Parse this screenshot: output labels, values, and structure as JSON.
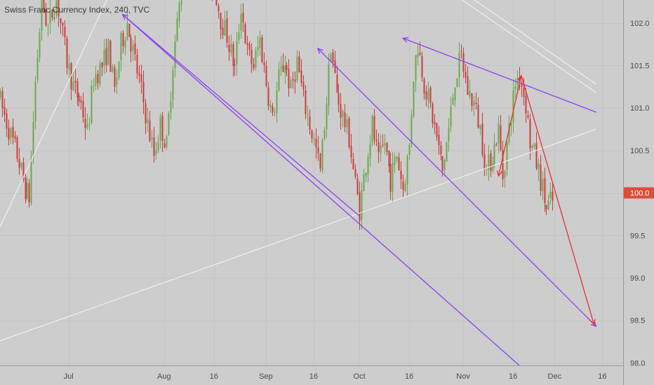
{
  "chart_data": {
    "type": "candlestick",
    "title": "Swiss Franc Currency Index, 240, TVC",
    "y_ticks": [
      98.0,
      98.5,
      99.0,
      99.5,
      100.0,
      100.5,
      101.0,
      101.5,
      102.0
    ],
    "y_tick_labels": [
      "98.0",
      "98.5",
      "99.0",
      "99.5",
      "100.0",
      "100.5",
      "101.0",
      "101.5",
      "102.0"
    ],
    "ylim": [
      97.97,
      102.27
    ],
    "current_price": 100.0,
    "current_price_label": "100.0",
    "x_tick_labels": [
      {
        "label": "Jul",
        "bar": 33
      },
      {
        "label": "Aug",
        "bar": 79
      },
      {
        "label": "16",
        "bar": 103
      },
      {
        "label": "Sep",
        "bar": 128
      },
      {
        "label": "16",
        "bar": 151
      },
      {
        "label": "Oct",
        "bar": 173
      },
      {
        "label": "16",
        "bar": 197
      },
      {
        "label": "Nov",
        "bar": 223
      },
      {
        "label": "16",
        "bar": 247
      },
      {
        "label": "Dec",
        "bar": 267
      },
      {
        "label": "16",
        "bar": 290
      }
    ],
    "bar_count": 300,
    "price_path": [
      [
        0,
        101.15
      ],
      [
        5,
        100.75
      ],
      [
        9,
        100.45
      ],
      [
        13,
        100.05
      ],
      [
        15,
        99.95
      ],
      [
        18,
        101.3
      ],
      [
        21,
        102.25
      ],
      [
        24,
        101.95
      ],
      [
        28,
        102.3
      ],
      [
        33,
        101.55
      ],
      [
        36,
        101.25
      ],
      [
        40,
        101.05
      ],
      [
        43,
        100.7
      ],
      [
        46,
        101.35
      ],
      [
        50,
        101.5
      ],
      [
        53,
        101.7
      ],
      [
        56,
        101.2
      ],
      [
        59,
        101.75
      ],
      [
        62,
        102.0
      ],
      [
        66,
        101.55
      ],
      [
        69,
        101.2
      ],
      [
        72,
        100.8
      ],
      [
        75,
        100.45
      ],
      [
        78,
        100.8
      ],
      [
        81,
        100.55
      ],
      [
        84,
        101.55
      ],
      [
        87,
        102.2
      ],
      [
        90,
        102.7
      ],
      [
        95,
        102.65
      ],
      [
        100,
        102.45
      ],
      [
        104,
        102.45
      ],
      [
        107,
        102.05
      ],
      [
        110,
        101.85
      ],
      [
        114,
        101.45
      ],
      [
        117,
        102.2
      ],
      [
        120,
        101.65
      ],
      [
        123,
        101.5
      ],
      [
        126,
        101.8
      ],
      [
        129,
        101.3
      ],
      [
        132,
        100.85
      ],
      [
        135,
        101.35
      ],
      [
        138,
        101.55
      ],
      [
        141,
        101.2
      ],
      [
        144,
        101.55
      ],
      [
        147,
        101.1
      ],
      [
        150,
        100.8
      ],
      [
        153,
        100.5
      ],
      [
        155,
        100.25
      ],
      [
        158,
        101.1
      ],
      [
        160,
        101.75
      ],
      [
        163,
        101.15
      ],
      [
        166,
        100.9
      ],
      [
        169,
        100.65
      ],
      [
        172,
        100.1
      ],
      [
        174,
        99.8
      ],
      [
        177,
        100.35
      ],
      [
        180,
        100.8
      ],
      [
        183,
        100.35
      ],
      [
        186,
        100.6
      ],
      [
        189,
        100.15
      ],
      [
        192,
        100.45
      ],
      [
        195,
        100.05
      ],
      [
        198,
        100.55
      ],
      [
        200,
        101.4
      ],
      [
        202,
        101.75
      ],
      [
        205,
        101.3
      ],
      [
        208,
        101.0
      ],
      [
        211,
        100.65
      ],
      [
        214,
        100.25
      ],
      [
        217,
        100.75
      ],
      [
        220,
        101.35
      ],
      [
        223,
        101.6
      ],
      [
        226,
        101.2
      ],
      [
        229,
        101.05
      ],
      [
        232,
        100.75
      ],
      [
        235,
        100.25
      ],
      [
        238,
        100.45
      ],
      [
        241,
        100.75
      ],
      [
        243,
        100.2
      ],
      [
        246,
        100.75
      ],
      [
        249,
        101.3
      ],
      [
        251,
        101.4
      ],
      [
        254,
        101.05
      ],
      [
        256,
        100.6
      ],
      [
        258,
        100.45
      ],
      [
        260,
        100.25
      ],
      [
        262,
        100.05
      ],
      [
        264,
        99.8
      ],
      [
        266,
        99.9
      ]
    ],
    "grid": true,
    "legend": "none"
  },
  "colors": {
    "background": "#cdcdcd",
    "up_candle": "#6aa84f",
    "down_candle": "#cc3b3b",
    "trendline_purple": "#8c3ff2",
    "trendline_red": "#e83030",
    "trendline_white": "#f5f5f5",
    "price_label_bg": "#e04b3a",
    "axis_text": "#4a4a4a"
  },
  "drawings": [
    {
      "kind": "line",
      "color": "white",
      "from": {
        "bar": -1,
        "price": 99.55
      },
      "to": {
        "bar": 52,
        "price": 102.3
      }
    },
    {
      "kind": "line",
      "color": "white",
      "from": {
        "bar": -1,
        "price": 98.25
      },
      "to": {
        "bar": 287,
        "price": 100.75
      }
    },
    {
      "kind": "line",
      "color": "white",
      "from": {
        "bar": 206,
        "price": 102.65
      },
      "to": {
        "bar": 287,
        "price": 101.28
      }
    },
    {
      "kind": "line",
      "color": "white",
      "from": {
        "bar": 206,
        "price": 102.55
      },
      "to": {
        "bar": 287,
        "price": 101.18
      }
    },
    {
      "kind": "arrow",
      "color": "purple",
      "from": {
        "bar": 173,
        "price": 99.73
      },
      "to": {
        "bar": 59,
        "price": 102.1
      },
      "arrow_at": "end"
    },
    {
      "kind": "line",
      "color": "purple",
      "from": {
        "bar": 59,
        "price": 102.1
      },
      "to": {
        "bar": 250,
        "price": 97.97
      }
    },
    {
      "kind": "arrow",
      "color": "purple",
      "from": {
        "bar": 287,
        "price": 98.43
      },
      "to": {
        "bar": 153,
        "price": 101.7
      },
      "arrow_at": "both"
    },
    {
      "kind": "arrow",
      "color": "purple",
      "from": {
        "bar": 287,
        "price": 100.95
      },
      "to": {
        "bar": 194,
        "price": 101.82
      },
      "arrow_at": "end"
    },
    {
      "kind": "arrow",
      "color": "red",
      "from": {
        "bar": 240,
        "price": 100.2
      },
      "to": {
        "bar": 251,
        "price": 101.38
      },
      "arrow_at": "both"
    },
    {
      "kind": "arrow",
      "color": "red",
      "from": {
        "bar": 251,
        "price": 101.38
      },
      "to": {
        "bar": 286,
        "price": 98.45
      },
      "arrow_at": "end"
    }
  ]
}
